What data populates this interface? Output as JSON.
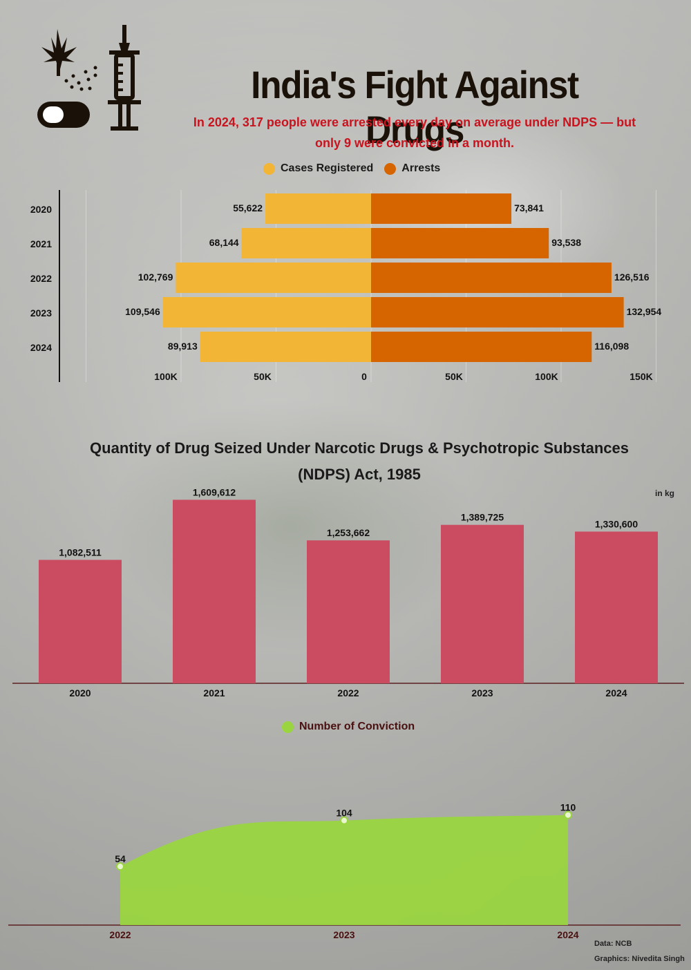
{
  "header": {
    "title": "India's Fight Against Drugs",
    "subtitle_line1": "In 2024, 317 people were arrested every day on average under NDPS — but",
    "subtitle_line2": "only 9 were convicted in a month.",
    "icon": "drugs-syringe-icon"
  },
  "colors": {
    "cases": "#f3b535",
    "arrests": "#d66500",
    "seized": "#cb4b61",
    "conviction": "#9ad540",
    "subtitle": "#c8141e"
  },
  "chart_data": [
    {
      "type": "bar",
      "orientation": "horizontal-diverging",
      "categories": [
        "2020",
        "2021",
        "2022",
        "2023",
        "2024"
      ],
      "series": [
        {
          "name": "Cases Registered",
          "values": [
            55622,
            68144,
            102769,
            109546,
            89913
          ],
          "labels": [
            "55,622",
            "68,144",
            "102,769",
            "109,546",
            "89,913"
          ]
        },
        {
          "name": "Arrests",
          "values": [
            73841,
            93538,
            126516,
            132954,
            116098
          ],
          "labels": [
            "73,841",
            "93,538",
            "126,516",
            "132,954",
            "116,098"
          ]
        }
      ],
      "tick_labels": [
        "100K",
        "50K",
        "0",
        "50K",
        "100K",
        "150K"
      ],
      "legend_position": "top",
      "grid": true
    },
    {
      "type": "bar",
      "title_line1": "Quantity of Drug Seized Under Narcotic Drugs & Psychotropic Substances",
      "title_line2": "(NDPS) Act, 1985",
      "unit": "in kg",
      "categories": [
        "2020",
        "2021",
        "2022",
        "2023",
        "2024"
      ],
      "values": [
        1082511,
        1609612,
        1253662,
        1389725,
        1330600
      ],
      "labels": [
        "1,082,511",
        "1,609,612",
        "1,253,662",
        "1,389,725",
        "1,330,600"
      ]
    },
    {
      "type": "area",
      "series": [
        {
          "name": "Number of Conviction",
          "values": [
            54,
            104,
            110
          ]
        }
      ],
      "x": [
        "2022",
        "2023",
        "2024"
      ],
      "labels": [
        "54",
        "104",
        "110"
      ],
      "legend_position": "top"
    }
  ],
  "footer": {
    "source": "Data: NCB",
    "credit": "Graphics: Nivedita Singh"
  }
}
